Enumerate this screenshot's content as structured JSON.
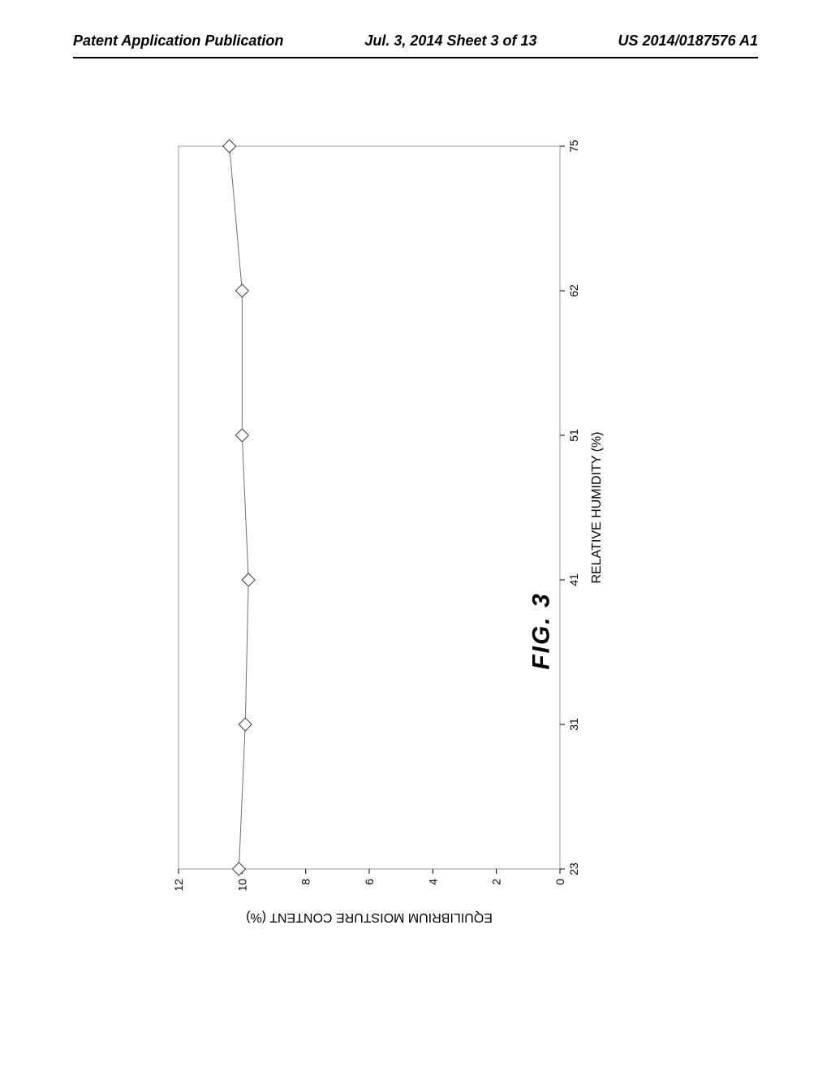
{
  "header": {
    "left": "Patent Application Publication",
    "center": "Jul. 3, 2014  Sheet 3 of 13",
    "right": "US 2014/0187576 A1"
  },
  "chart": {
    "type": "line",
    "title": "",
    "x_label": "RELATIVE HUMIDITY (%)",
    "y_label": "EQUILIBRIUM MOISTURE CONTENT (%)",
    "x_categories": [
      "23",
      "31",
      "41",
      "51",
      "62",
      "75"
    ],
    "y_ticks": [
      0,
      2,
      4,
      6,
      8,
      10,
      12
    ],
    "x_values": [
      23,
      31,
      41,
      51,
      62,
      75
    ],
    "y_values": [
      10.1,
      9.9,
      9.8,
      10.0,
      10.0,
      10.4
    ],
    "ylim": [
      0,
      12
    ],
    "marker": "diamond",
    "marker_size": 8,
    "marker_fill": "#ffffff",
    "marker_stroke": "#404040",
    "line_color": "#707070",
    "line_width": 1,
    "border_color": "#808080",
    "border_width": 0.8,
    "axis_color": "#000000",
    "tick_font_size": 14,
    "label_font_size": 16,
    "background_color": "#ffffff"
  },
  "figure_label": "FIG. 3"
}
